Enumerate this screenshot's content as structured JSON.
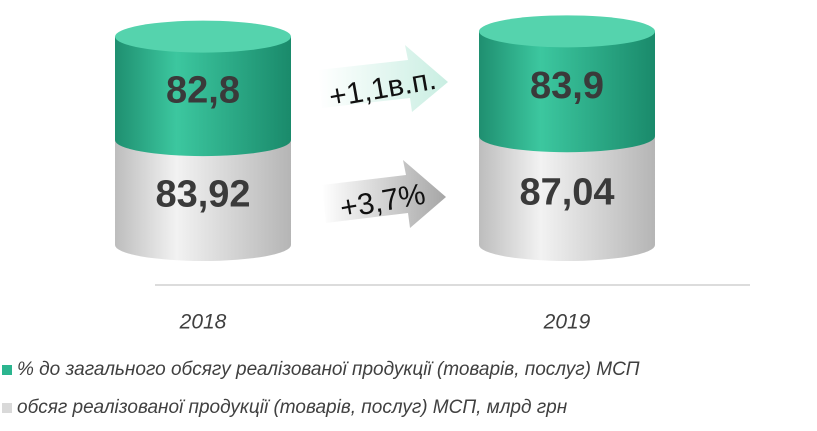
{
  "chart_data": {
    "type": "cylinder-stacked-bar",
    "categories": [
      "2018",
      "2019"
    ],
    "series": [
      {
        "name": "обсяг реалізованої продукції (товарів, послуг) МСП, млрд грн",
        "color": "#d9d9d9",
        "values": [
          83.92,
          87.04
        ],
        "value_labels": [
          "83,92",
          "87,04"
        ]
      },
      {
        "name": "% до загального обсягу реалізованої продукції (товарів, послуг) МСП",
        "color": "#2bb58f",
        "values": [
          82.8,
          83.9
        ],
        "value_labels": [
          "82,8",
          "83,9"
        ]
      }
    ],
    "annotations": [
      "+1,1в.п.",
      "+3,7%"
    ]
  }
}
